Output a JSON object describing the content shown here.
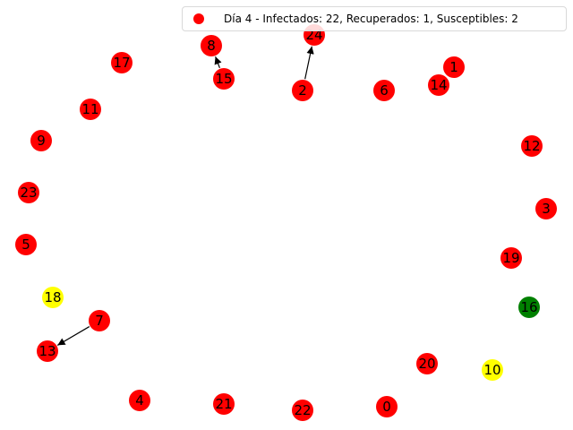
{
  "legend": {
    "label": "Día 4 - Infectados: 22, Recuperados: 1, Susceptibles: 2",
    "marker_color": "#ff0000"
  },
  "colors": {
    "infected": "#ff0000",
    "recovered": "#008000",
    "susceptible": "#ffff00",
    "edge": "#000000"
  },
  "nodes": [
    {
      "id": "0",
      "state": "infected"
    },
    {
      "id": "1",
      "state": "infected"
    },
    {
      "id": "2",
      "state": "infected"
    },
    {
      "id": "3",
      "state": "infected"
    },
    {
      "id": "4",
      "state": "infected"
    },
    {
      "id": "5",
      "state": "infected"
    },
    {
      "id": "6",
      "state": "infected"
    },
    {
      "id": "7",
      "state": "infected"
    },
    {
      "id": "8",
      "state": "infected"
    },
    {
      "id": "9",
      "state": "infected"
    },
    {
      "id": "10",
      "state": "susceptible"
    },
    {
      "id": "11",
      "state": "infected"
    },
    {
      "id": "12",
      "state": "infected"
    },
    {
      "id": "13",
      "state": "infected"
    },
    {
      "id": "14",
      "state": "infected"
    },
    {
      "id": "15",
      "state": "infected"
    },
    {
      "id": "16",
      "state": "recovered"
    },
    {
      "id": "17",
      "state": "infected"
    },
    {
      "id": "18",
      "state": "susceptible"
    },
    {
      "id": "19",
      "state": "infected"
    },
    {
      "id": "20",
      "state": "infected"
    },
    {
      "id": "21",
      "state": "infected"
    },
    {
      "id": "22",
      "state": "infected"
    },
    {
      "id": "23",
      "state": "infected"
    },
    {
      "id": "24",
      "state": "infected"
    }
  ],
  "edges": [
    {
      "source": "2",
      "target": "24"
    },
    {
      "source": "15",
      "target": "8"
    },
    {
      "source": "7",
      "target": "13"
    }
  ]
}
